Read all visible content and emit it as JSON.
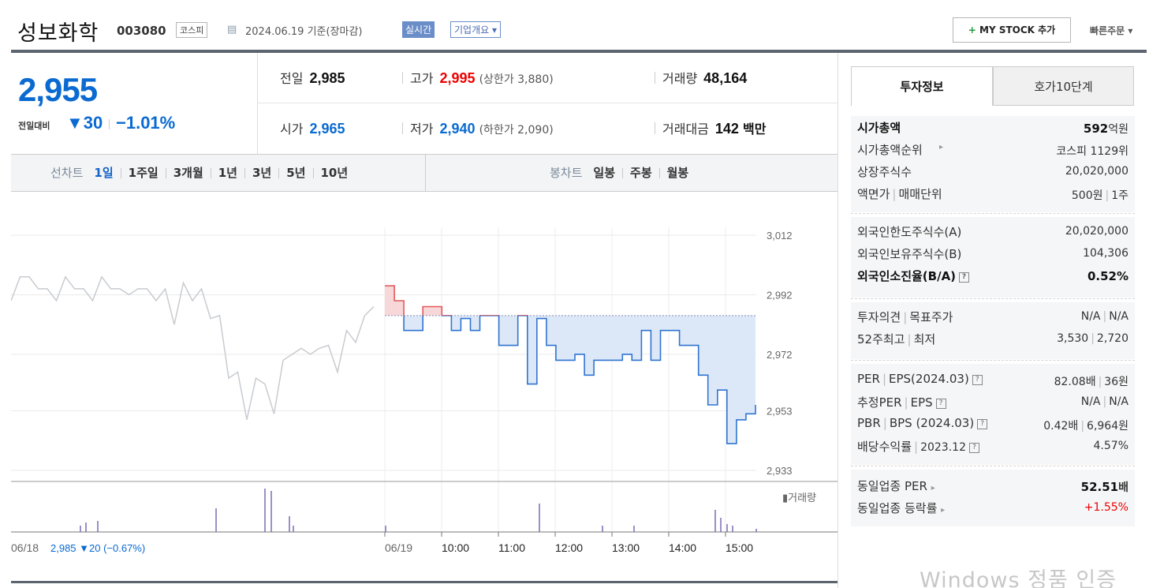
{
  "header": {
    "title": "성보화학",
    "code": "003080",
    "market": "코스피",
    "date": "2024.06.19 기준(장마감)",
    "realtime_label": "실시간",
    "company_overview": "기업개요 ▾",
    "my_stock": "MY STOCK 추가",
    "my_stock_plus": "+",
    "quick_order": "빠른주문 ▾"
  },
  "price": {
    "current": "2,955",
    "compare_label": "전일대비",
    "change": "▼30",
    "change_pct": "−1.01%",
    "direction": "down"
  },
  "info": {
    "prev_label": "전일",
    "prev": "2,985",
    "high_label": "고가",
    "high": "2,995",
    "upper_limit": "(상한가 3,880)",
    "volume_label": "거래량",
    "volume": "48,164",
    "open_label": "시가",
    "open": "2,965",
    "low_label": "저가",
    "low": "2,940",
    "lower_limit": "(하한가 2,090)",
    "amount_label": "거래대금",
    "amount": "142",
    "amount_unit": "백만"
  },
  "tabs": {
    "line_chart_label": "선차트",
    "line_periods": [
      "1일",
      "1주일",
      "3개월",
      "1년",
      "3년",
      "5년",
      "10년"
    ],
    "active_period": "1일",
    "candle_chart_label": "봉차트",
    "candle_periods": [
      "일봉",
      "주봉",
      "월봉"
    ]
  },
  "chart_data": {
    "type": "line",
    "title": "",
    "y_ticks": [
      "3,012",
      "2,992",
      "2,972",
      "2,953",
      "2,933"
    ],
    "ylim": [
      2933,
      3012
    ],
    "prev_close": 2985,
    "x_ticks": [
      "06/18",
      "06/19",
      "10:00",
      "11:00",
      "12:00",
      "13:00",
      "14:00",
      "15:00"
    ],
    "prev_day_label": "06/18",
    "prev_day_summary": "2,985 ▼20 (−0.67%)",
    "volume_legend": "거래량",
    "series": [
      {
        "name": "06/18",
        "color": "#c8cbd0",
        "x": [
          0,
          1,
          2,
          3,
          4,
          5,
          6,
          7,
          8,
          9,
          10,
          11,
          12,
          13,
          14,
          15,
          16,
          17,
          18,
          19,
          20,
          21,
          22,
          23,
          24,
          25,
          26,
          27,
          28,
          29,
          30,
          31,
          32,
          33,
          34,
          35,
          36,
          37,
          38,
          39,
          40
        ],
        "values": [
          2990,
          2998,
          2998,
          2994,
          2994,
          2990,
          2998,
          2994,
          2994,
          2990,
          2998,
          2994,
          2994,
          2992,
          2994,
          2994,
          2990,
          2994,
          2982,
          2996,
          2990,
          2994,
          2984,
          2985,
          2964,
          2966,
          2950,
          2964,
          2962,
          2952,
          2970,
          2972,
          2974,
          2972,
          2974,
          2975,
          2966,
          2980,
          2976,
          2985,
          2988
        ]
      },
      {
        "name": "06/19",
        "color": "#2f74d0",
        "time": [
          "09:00",
          "09:10",
          "09:20",
          "09:30",
          "09:40",
          "09:50",
          "10:00",
          "10:10",
          "10:20",
          "10:30",
          "10:40",
          "10:50",
          "11:00",
          "11:10",
          "11:20",
          "11:30",
          "11:40",
          "11:50",
          "12:00",
          "12:10",
          "12:20",
          "12:30",
          "12:40",
          "12:50",
          "13:00",
          "13:10",
          "13:20",
          "13:30",
          "13:40",
          "13:50",
          "14:00",
          "14:10",
          "14:20",
          "14:30",
          "14:40",
          "14:50",
          "15:00",
          "15:10",
          "15:20",
          "15:30"
        ],
        "values": [
          2995,
          2990,
          2980,
          2980,
          2988,
          2988,
          2985,
          2980,
          2984,
          2980,
          2985,
          2985,
          2975,
          2975,
          2985,
          2962,
          2984,
          2975,
          2970,
          2970,
          2972,
          2965,
          2970,
          2970,
          2970,
          2972,
          2970,
          2980,
          2970,
          2980,
          2980,
          2975,
          2975,
          2965,
          2955,
          2960,
          2942,
          2950,
          2952,
          2955
        ]
      }
    ]
  },
  "side": {
    "tab_invest": "투자정보",
    "tab_orderbook": "호가10단계",
    "market_cap_label": "시가총액",
    "market_cap": "592",
    "market_cap_unit": "억원",
    "market_cap_rank_label": "시가총액순위",
    "market_cap_rank": "코스피 1129위",
    "shares_label": "상장주식수",
    "shares": "20,020,000",
    "par_label": "액면가",
    "trade_unit_label": "매매단위",
    "par": "500원",
    "trade_unit": "1주",
    "foreign_limit_label": "외국인한도주식수(A)",
    "foreign_limit": "20,020,000",
    "foreign_hold_label": "외국인보유주식수(B)",
    "foreign_hold": "104,306",
    "foreign_ratio_label": "외국인소진율(B/A)",
    "foreign_ratio": "0.52%",
    "opinion_label": "투자의견",
    "target_label": "목표주가",
    "opinion": "N/A",
    "target": "N/A",
    "high52_label": "52주최고",
    "low52_label": "최저",
    "high52": "3,530",
    "low52": "2,720",
    "per_label": "PER",
    "eps_label": "EPS(2024.03)",
    "per": "82.08배",
    "eps": "36원",
    "est_per_label": "추정PER",
    "est_eps_label": "EPS",
    "est_per": "N/A",
    "est_eps": "N/A",
    "pbr_label": "PBR",
    "bps_label": "BPS (2024.03)",
    "pbr": "0.42배",
    "bps": "6,964원",
    "div_label": "배당수익률",
    "div_year": "2023.12",
    "div": "4.57%",
    "sector_per_label": "동일업종 PER",
    "sector_per": "52.51",
    "sector_per_unit": "배",
    "sector_change_label": "동일업종 등락률",
    "sector_change": "+1.55%"
  },
  "watermark": "Windows 정품 인증",
  "colors": {
    "down": "#0a6ad1",
    "up": "#e00000",
    "line_today": "#2f74d0",
    "line_prev": "#c8cbd0",
    "fill_down": "#dce8f8",
    "fill_up": "#f8d7d9",
    "volume": "#7b6bb3"
  }
}
